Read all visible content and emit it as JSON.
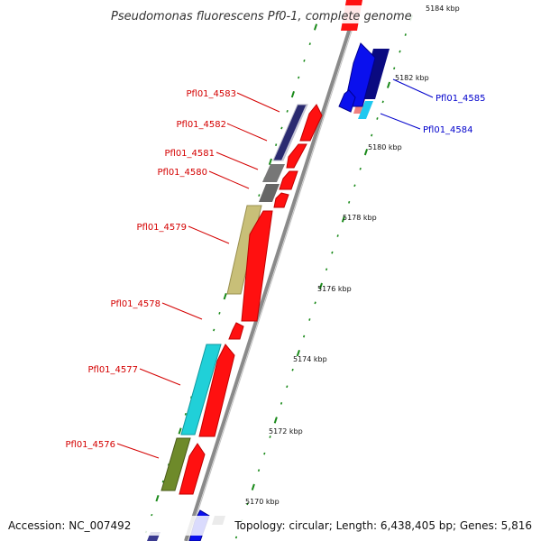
{
  "title": "Pseudomonas fluorescens Pf0-1, complete genome",
  "accession": "Accession: NC_007492",
  "topology": "Topology: circular; Length: 6,438,405 bp; Genes: 5,816",
  "colors": {
    "backbone": "#8a8a8a",
    "reverse_label": "#d40000",
    "forward_label": "#0000cc",
    "tick": "#1a8a1a",
    "forward_strand_gene": "#ff1010",
    "cog_dark_blue": "#0a0a80",
    "cog_grey": "#777777",
    "cog_khaki": "#c8bf78",
    "cog_cyan": "#20d0d8",
    "cog_olive": "#6e8a2a",
    "cog_pink": "#f08080",
    "cog_light_grey": "#c8c8d8"
  },
  "scale": {
    "tick_labels": [
      "5170 kbp",
      "5172 kbp",
      "5174 kbp",
      "5176 kbp",
      "5178 kbp",
      "5180 kbp",
      "5182 kbp",
      "5184 kbp"
    ]
  },
  "gene_labels": [
    {
      "name": "Pfl01_4583",
      "strand": "reverse"
    },
    {
      "name": "Pfl01_4582",
      "strand": "reverse"
    },
    {
      "name": "Pfl01_4581",
      "strand": "reverse"
    },
    {
      "name": "Pfl01_4580",
      "strand": "reverse"
    },
    {
      "name": "Pfl01_4579",
      "strand": "reverse"
    },
    {
      "name": "Pfl01_4578",
      "strand": "reverse"
    },
    {
      "name": "Pfl01_4577",
      "strand": "reverse"
    },
    {
      "name": "Pfl01_4576",
      "strand": "reverse"
    },
    {
      "name": "Pfl01_4585",
      "strand": "forward"
    },
    {
      "name": "Pfl01_4584",
      "strand": "forward"
    }
  ]
}
